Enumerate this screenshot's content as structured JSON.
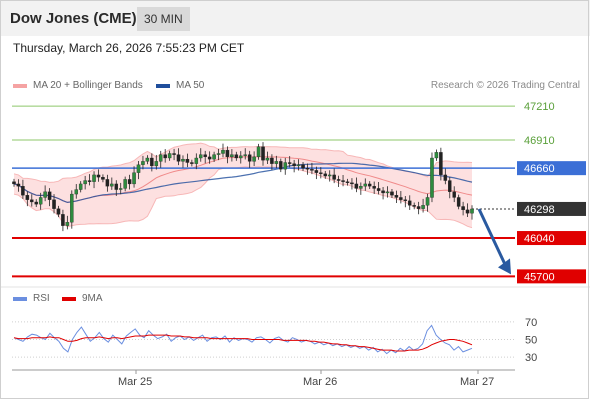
{
  "header": {
    "title": "Dow Jones (CME)",
    "timeframe": "30 MIN",
    "datetime": "Thursday, March 26, 2026 7:55:23 PM CET"
  },
  "legend": {
    "bb": "MA 20 + Bollinger Bands",
    "ma50": "MA 50",
    "credit": "Research © 2026 Trading Central",
    "rsi": "RSI",
    "ma9": "9MA"
  },
  "colors": {
    "bb": "#f5a3a3",
    "ma50": "#1f4e9c",
    "rsi": "#6b8fe0",
    "ma9": "#e00000",
    "support": "#e00000",
    "resistance": "#8ec76a",
    "pivot": "#3b6fd6",
    "arrow": "#2a5aa0"
  },
  "chart_data": [
    {
      "type": "candlestick",
      "price_range": [
        45650,
        47300
      ],
      "x_ticks": [
        "Mar 25",
        "Mar 26",
        "Mar 27"
      ],
      "levels": {
        "resistance": [
          47210,
          46910
        ],
        "pivot": 46660,
        "support": [
          46040,
          45700
        ],
        "last_price": 46298
      },
      "level_labels": {
        "r2": "47210",
        "r1": "46910",
        "pivot": "46660",
        "last": "46298",
        "s1": "46040",
        "s2": "45700"
      },
      "series": [
        {
          "name": "MA 20 + Bollinger Bands"
        },
        {
          "name": "MA 50"
        }
      ],
      "closes": [
        46520,
        46500,
        46420,
        46380,
        46360,
        46340,
        46400,
        46450,
        46380,
        46300,
        46250,
        46150,
        46180,
        46430,
        46470,
        46520,
        46550,
        46540,
        46600,
        46580,
        46560,
        46500,
        46520,
        46470,
        46480,
        46560,
        46520,
        46620,
        46690,
        46720,
        46750,
        46680,
        46720,
        46780,
        46750,
        46790,
        46780,
        46720,
        46740,
        46710,
        46700,
        46750,
        46780,
        46760,
        46740,
        46780,
        46790,
        46820,
        46760,
        46780,
        46750,
        46770,
        46780,
        46720,
        46760,
        46850,
        46730,
        46750,
        46700,
        46720,
        46650,
        46710,
        46700,
        46680,
        46690,
        46660,
        46650,
        46640,
        46620,
        46610,
        46590,
        46600,
        46560,
        46550,
        46540,
        46530,
        46520,
        46480,
        46500,
        46520,
        46500,
        46480,
        46460,
        46440,
        46450,
        46420,
        46400,
        46380,
        46370,
        46330,
        46320,
        46300,
        46330,
        46400,
        46750,
        46800,
        46600,
        46550,
        46450,
        46400,
        46320,
        46290,
        46260,
        46298
      ],
      "projection": {
        "from": 46298,
        "to": 45700
      }
    },
    {
      "type": "line",
      "name": "RSI",
      "ylim": [
        20,
        80
      ],
      "ticks": [
        "70",
        "50",
        "30"
      ],
      "series": [
        {
          "name": "RSI",
          "values": [
            52,
            50,
            48,
            53,
            56,
            55,
            52,
            50,
            57,
            52,
            48,
            40,
            36,
            50,
            58,
            64,
            56,
            48,
            52,
            58,
            51,
            47,
            55,
            50,
            45,
            54,
            58,
            62,
            55,
            52,
            60,
            55,
            51,
            53,
            56,
            48,
            52,
            54,
            50,
            53,
            49,
            52,
            55,
            48,
            52,
            53,
            50,
            54,
            47,
            52,
            49,
            51,
            50,
            47,
            52,
            53,
            50,
            46,
            51,
            53,
            49,
            47,
            52,
            50,
            47,
            49,
            48,
            45,
            47,
            44,
            46,
            43,
            45,
            42,
            44,
            41,
            43,
            40,
            42,
            38,
            41,
            36,
            39,
            34,
            38,
            35,
            40,
            37,
            42,
            38,
            40,
            45,
            60,
            66,
            55,
            50,
            46,
            44,
            38,
            42,
            36,
            38,
            40
          ]
        },
        {
          "name": "9MA",
          "values": [
            52,
            51,
            51,
            51,
            52,
            52,
            52,
            52,
            53,
            52,
            52,
            50,
            48,
            48,
            49,
            51,
            52,
            52,
            52,
            53,
            52,
            51,
            52,
            52,
            51,
            52,
            53,
            54,
            54,
            54,
            55,
            55,
            55,
            55,
            55,
            54,
            54,
            54,
            53,
            53,
            52,
            52,
            52,
            52,
            51,
            51,
            51,
            51,
            51,
            51,
            51,
            51,
            51,
            50,
            50,
            50,
            50,
            50,
            50,
            50,
            49,
            49,
            49,
            49,
            49,
            49,
            48,
            48,
            47,
            47,
            46,
            45,
            45,
            44,
            44,
            43,
            43,
            42,
            42,
            41,
            40,
            39,
            38,
            38,
            38,
            37,
            37,
            37,
            38,
            38,
            38,
            39,
            41,
            44,
            46,
            48,
            49,
            50,
            50,
            49,
            48,
            46,
            44
          ]
        }
      ]
    }
  ]
}
